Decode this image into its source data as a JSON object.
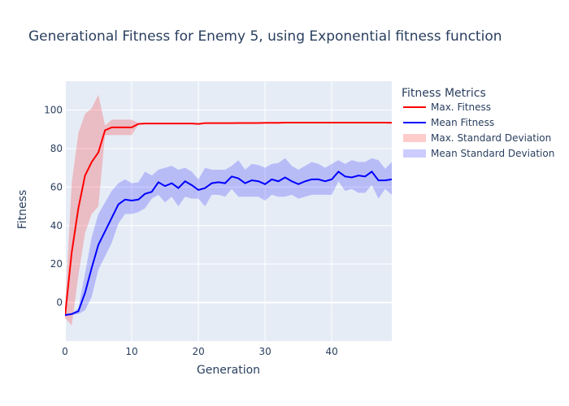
{
  "chart_data": {
    "type": "line",
    "title": "Generational Fitness for Enemy 5, using Exponential fitness function",
    "xlabel": "Generation",
    "ylabel": "Fitness",
    "xlim": [
      0,
      49
    ],
    "ylim": [
      -20,
      115
    ],
    "xticks": [
      0,
      10,
      20,
      30,
      40
    ],
    "yticks": [
      0,
      20,
      40,
      60,
      80,
      100
    ],
    "grid": true,
    "legend_title": "Fitness Metrics",
    "legend_position": "right",
    "x": [
      0,
      1,
      2,
      3,
      4,
      5,
      6,
      7,
      8,
      9,
      10,
      11,
      12,
      13,
      14,
      15,
      16,
      17,
      18,
      19,
      20,
      21,
      22,
      23,
      24,
      25,
      26,
      27,
      28,
      29,
      30,
      31,
      32,
      33,
      34,
      35,
      36,
      37,
      38,
      39,
      40,
      41,
      42,
      43,
      44,
      45,
      46,
      47,
      48,
      49
    ],
    "series": [
      {
        "name": "Max. Fitness",
        "kind": "line",
        "color": "#ff0000",
        "values": [
          -7,
          26,
          49,
          66,
          73,
          78,
          89.5,
          91,
          91,
          91,
          91,
          92.8,
          93,
          93,
          93,
          93,
          93,
          93,
          93,
          93,
          92.8,
          93.2,
          93.2,
          93.2,
          93.2,
          93.2,
          93.3,
          93.3,
          93.3,
          93.3,
          93.4,
          93.4,
          93.4,
          93.5,
          93.5,
          93.5,
          93.5,
          93.5,
          93.5,
          93.5,
          93.5,
          93.5,
          93.5,
          93.5,
          93.5,
          93.5,
          93.5,
          93.5,
          93.5,
          93.4
        ]
      },
      {
        "name": "Mean Fitness",
        "kind": "line",
        "color": "#0000ff",
        "values": [
          -6.5,
          -6,
          -4.5,
          5,
          18,
          30,
          37,
          44,
          51,
          53.5,
          53,
          53.5,
          56.5,
          57.5,
          62.5,
          60.5,
          62,
          59.5,
          63,
          61,
          58.5,
          59.5,
          62,
          62.5,
          62,
          65.5,
          64.5,
          62,
          63.5,
          63,
          61.5,
          64,
          63,
          65,
          63,
          61.5,
          63,
          64,
          64,
          63,
          64,
          68,
          65.5,
          65,
          66,
          65.5,
          68,
          63.5,
          63.5,
          64
        ]
      },
      {
        "name": "Max. Standard Deviation",
        "kind": "band",
        "color": "rgba(255,0,0,0.2)",
        "upper": [
          -3,
          62,
          88,
          98,
          101,
          108,
          92,
          95,
          95,
          95,
          95,
          93.2,
          93.2,
          93.2,
          93.2,
          93.2,
          93.2,
          93.2,
          93.2,
          93.2,
          93,
          93.4,
          93.4,
          93.4,
          93.4,
          93.4,
          93.5,
          93.5,
          93.5,
          93.5,
          93.6,
          93.6,
          93.6,
          93.7,
          93.7,
          93.7,
          93.7,
          93.7,
          93.7,
          93.7,
          93.7,
          93.7,
          93.7,
          93.7,
          93.7,
          93.7,
          93.7,
          93.7,
          93.7,
          93.6
        ],
        "lower": [
          -8,
          -12,
          14,
          36,
          46,
          50,
          87,
          87,
          87,
          87,
          87,
          92.5,
          92.8,
          92.8,
          92.8,
          92.8,
          92.8,
          92.8,
          92.8,
          92.8,
          92.6,
          93,
          93,
          93,
          93,
          93,
          93.1,
          93.1,
          93.1,
          93.1,
          93.2,
          93.2,
          93.2,
          93.3,
          93.3,
          93.3,
          93.3,
          93.3,
          93.3,
          93.3,
          93.3,
          93.3,
          93.3,
          93.3,
          93.3,
          93.3,
          93.3,
          93.3,
          93.3,
          93.2
        ]
      },
      {
        "name": "Mean Standard Deviation",
        "kind": "band",
        "color": "rgba(0,0,255,0.2)",
        "upper": [
          -6,
          -5.5,
          -3,
          15,
          34,
          46,
          52,
          58,
          62,
          64,
          62,
          62.5,
          68,
          66,
          69,
          70,
          71,
          69,
          70,
          68,
          64,
          70,
          69,
          69,
          69,
          71,
          74,
          69,
          72,
          71.5,
          70,
          72,
          72.5,
          75,
          71,
          69,
          71,
          73,
          72,
          70,
          72,
          74,
          72,
          74,
          73,
          73,
          75,
          74,
          69.5,
          73
        ],
        "lower": [
          -7,
          -6.5,
          -6,
          -4,
          3,
          17,
          24,
          31,
          41,
          46,
          46,
          47,
          49,
          54,
          56,
          52,
          55,
          50,
          55,
          54,
          54,
          50,
          56,
          56,
          55,
          59,
          55,
          55,
          55,
          55,
          53,
          56,
          55,
          55,
          56,
          54,
          55,
          56,
          56,
          56,
          56,
          63,
          58,
          59,
          57,
          57,
          61,
          54,
          59,
          56
        ]
      }
    ]
  }
}
